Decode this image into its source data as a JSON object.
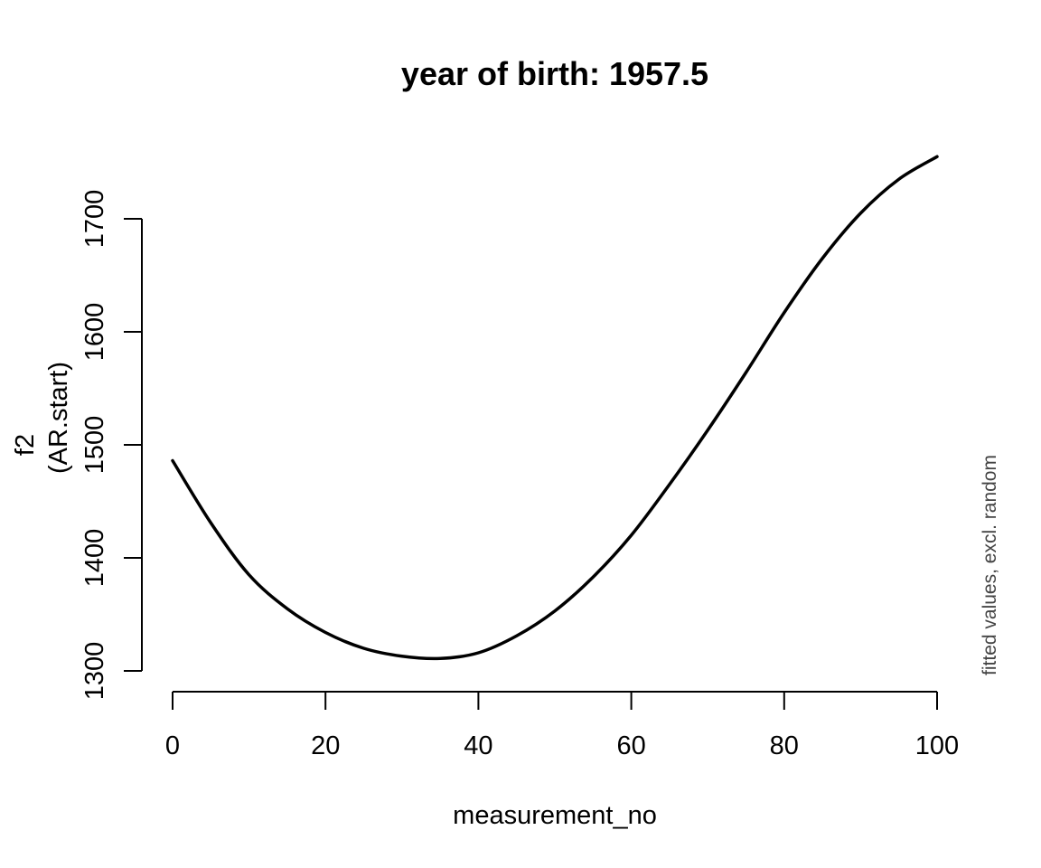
{
  "chart_data": {
    "type": "line",
    "title": "year of birth: 1957.5",
    "xlabel": "measurement_no",
    "ylabel_line1": "f2",
    "ylabel_line2": "(AR.start)",
    "side_note": "fitted values, excl. random",
    "xlim": [
      0,
      100
    ],
    "ylim": [
      1300,
      1700
    ],
    "x_ticks": [
      0,
      20,
      40,
      60,
      80,
      100
    ],
    "y_ticks": [
      1300,
      1400,
      1500,
      1600,
      1700
    ],
    "x_tick_labels": [
      "0",
      "20",
      "40",
      "60",
      "80",
      "100"
    ],
    "y_tick_labels": [
      "1300",
      "1400",
      "1500",
      "1600",
      "1700"
    ],
    "grid": false,
    "series": [
      {
        "color": "#000000",
        "x": [
          0,
          5,
          10,
          15,
          20,
          25,
          30,
          35,
          40,
          45,
          50,
          55,
          60,
          65,
          70,
          75,
          80,
          85,
          90,
          95,
          100
        ],
        "y": [
          1486,
          1431,
          1385,
          1355,
          1334,
          1320,
          1313,
          1311,
          1316,
          1331,
          1353,
          1383,
          1420,
          1465,
          1513,
          1564,
          1617,
          1665,
          1705,
          1735,
          1755
        ]
      }
    ]
  }
}
